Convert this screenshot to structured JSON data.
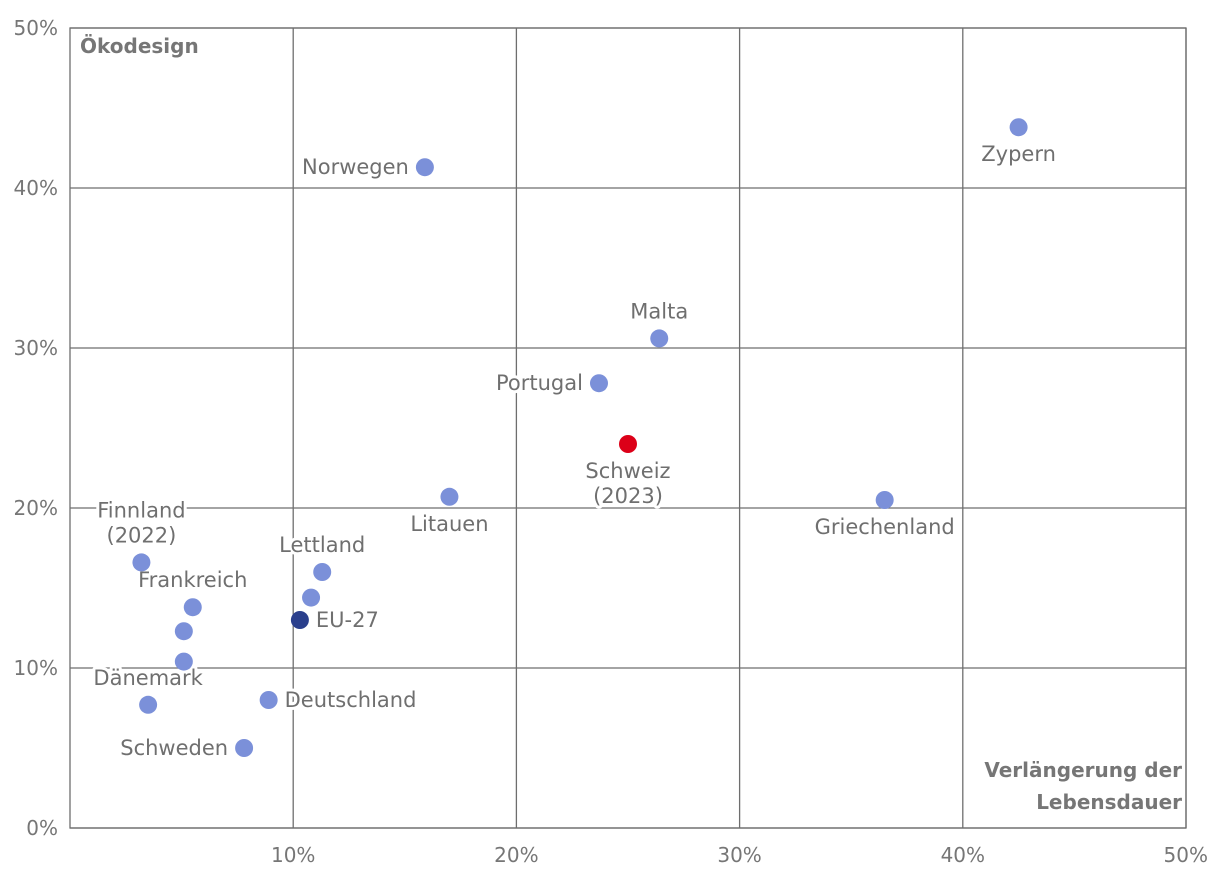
{
  "chart_data": {
    "type": "scatter",
    "xlabel_lines": [
      "Verlängerung der",
      "Lebensdauer"
    ],
    "ylabel": "Ökodesign",
    "xlim": [
      0,
      50
    ],
    "ylim": [
      0,
      50
    ],
    "x_ticks": [
      10,
      20,
      30,
      40,
      50
    ],
    "y_ticks": [
      0,
      10,
      20,
      30,
      40,
      50
    ],
    "x_tick_labels": [
      "10%",
      "20%",
      "30%",
      "40%",
      "50%"
    ],
    "y_tick_labels": [
      "0%",
      "10%",
      "20%",
      "30%",
      "40%",
      "50%"
    ],
    "colors": {
      "default": "#7b90d9",
      "highlight": "#dc0018",
      "average": "#2a3f8c"
    },
    "points": [
      {
        "x": 42.5,
        "y": 43.8,
        "label_lines": [
          "Zypern"
        ],
        "label_pos": "below",
        "kind": "default"
      },
      {
        "x": 15.9,
        "y": 41.3,
        "label_lines": [
          "Norwegen"
        ],
        "label_pos": "left",
        "kind": "default"
      },
      {
        "x": 26.4,
        "y": 30.6,
        "label_lines": [
          "Malta"
        ],
        "label_pos": "above",
        "kind": "default"
      },
      {
        "x": 23.7,
        "y": 27.8,
        "label_lines": [
          "Portugal"
        ],
        "label_pos": "left",
        "kind": "default"
      },
      {
        "x": 25.0,
        "y": 24.0,
        "label_lines": [
          "Schweiz",
          "(2023)"
        ],
        "label_pos": "below",
        "kind": "highlight"
      },
      {
        "x": 17.0,
        "y": 20.7,
        "label_lines": [
          "Litauen"
        ],
        "label_pos": "below",
        "kind": "default"
      },
      {
        "x": 36.5,
        "y": 20.5,
        "label_lines": [
          "Griechenland"
        ],
        "label_pos": "below",
        "kind": "default"
      },
      {
        "x": 3.2,
        "y": 16.6,
        "label_lines": [
          "Finnland",
          "(2022)"
        ],
        "label_pos": "above",
        "kind": "default"
      },
      {
        "x": 11.3,
        "y": 16.0,
        "label_lines": [
          "Lettland"
        ],
        "label_pos": "above",
        "kind": "default"
      },
      {
        "x": 5.5,
        "y": 13.8,
        "label_lines": [
          "Frankreich"
        ],
        "label_pos": "above",
        "kind": "default"
      },
      {
        "x": 10.8,
        "y": 14.4,
        "label_lines": [],
        "label_pos": "none",
        "kind": "default"
      },
      {
        "x": 10.3,
        "y": 13.0,
        "label_lines": [
          "EU-27"
        ],
        "label_pos": "right",
        "kind": "average"
      },
      {
        "x": 5.1,
        "y": 12.3,
        "label_lines": [],
        "label_pos": "none",
        "kind": "default"
      },
      {
        "x": 5.1,
        "y": 10.4,
        "label_lines": [],
        "label_pos": "none",
        "kind": "default"
      },
      {
        "x": 3.5,
        "y": 7.7,
        "label_lines": [
          "Dänemark"
        ],
        "label_pos": "above",
        "kind": "default"
      },
      {
        "x": 8.9,
        "y": 8.0,
        "label_lines": [
          "Deutschland"
        ],
        "label_pos": "right",
        "kind": "default"
      },
      {
        "x": 7.8,
        "y": 5.0,
        "label_lines": [
          "Schweden"
        ],
        "label_pos": "left",
        "kind": "default"
      }
    ]
  }
}
